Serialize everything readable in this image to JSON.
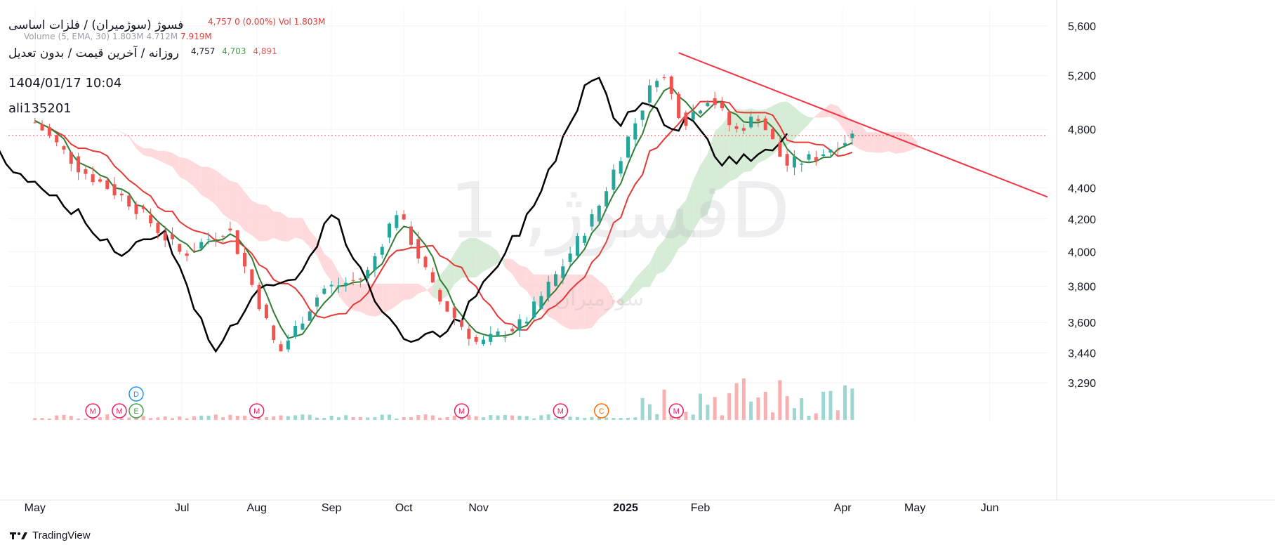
{
  "header": {
    "symbol_title": "فسوژ (سوژمیران) / فلزات اساسی",
    "ohlc_text": "4,757  0 (0.00%)  Vol 1.803M",
    "volume_label": "Volume (5, EMA, 30)",
    "volume_values": "1.803M  4.712M",
    "volume_ema": "7.919M",
    "subtitle": "روزانه / آخرین قیمت / بدون تعدیل",
    "indicator_values": [
      "4,757",
      "4,703",
      "4,891"
    ],
    "datetime": "1404/01/17 10:04",
    "username": "ali135201"
  },
  "watermark": {
    "main": "فسوژ, 1D",
    "sub": "سوژمیران"
  },
  "branding": {
    "label": "TradingView"
  },
  "colors": {
    "up": "#26a69a",
    "down": "#ef5350",
    "tenkan": "#2e7d32",
    "kijun": "#e53935",
    "chikou": "#000000",
    "cloud_bull": "#c8e6c9",
    "cloud_bear": "#ffcdd2",
    "trendline": "#f23645",
    "price_line": "#ef5350"
  },
  "chart_data": {
    "type": "candlestick",
    "title": "فسوژ (سوژمیران) / فلزات اساسی",
    "y_axis": {
      "scale": "log",
      "ticks": [
        5600,
        5200,
        4800,
        4400,
        4200,
        4000,
        3800,
        3600,
        3440,
        3290
      ],
      "tick_labels": [
        "5,600",
        "5,200",
        "4,800",
        "4,400",
        "4,200",
        "4,000",
        "3,800",
        "3,600",
        "3,440",
        "3,290"
      ],
      "range": [
        3100,
        5700
      ]
    },
    "x_axis": {
      "tick_labels": [
        "May",
        "Jul",
        "Aug",
        "Sep",
        "Oct",
        "Nov",
        "2025",
        "Feb",
        "Apr",
        "May",
        "Jun"
      ],
      "range": [
        "2024-04-20",
        "2025-06-25"
      ]
    },
    "last_price": 4757,
    "price_series_approx": [
      {
        "date": "2024-05-01",
        "close": 4850
      },
      {
        "date": "2024-05-20",
        "close": 4520
      },
      {
        "date": "2024-06-10",
        "close": 4300
      },
      {
        "date": "2024-07-01",
        "close": 3980
      },
      {
        "date": "2024-07-20",
        "close": 4150
      },
      {
        "date": "2024-08-10",
        "close": 3430
      },
      {
        "date": "2024-08-28",
        "close": 3780
      },
      {
        "date": "2024-09-15",
        "close": 3850
      },
      {
        "date": "2024-09-28",
        "close": 4250
      },
      {
        "date": "2024-10-15",
        "close": 3730
      },
      {
        "date": "2024-11-01",
        "close": 3480
      },
      {
        "date": "2024-11-20",
        "close": 3600
      },
      {
        "date": "2024-12-05",
        "close": 3900
      },
      {
        "date": "2024-12-20",
        "close": 4250
      },
      {
        "date": "2025-01-05",
        "close": 4850
      },
      {
        "date": "2025-01-15",
        "close": 5250
      },
      {
        "date": "2025-01-25",
        "close": 4850
      },
      {
        "date": "2025-02-05",
        "close": 5050
      },
      {
        "date": "2025-02-15",
        "close": 4780
      },
      {
        "date": "2025-02-25",
        "close": 4900
      },
      {
        "date": "2025-03-08",
        "close": 4550
      },
      {
        "date": "2025-03-20",
        "close": 4600
      },
      {
        "date": "2025-04-05",
        "close": 4757
      }
    ],
    "event_markers": [
      {
        "date": "2024-05-25",
        "label": "M"
      },
      {
        "date": "2024-06-05",
        "label": "M"
      },
      {
        "date": "2024-06-12",
        "label": "E"
      },
      {
        "date": "2024-06-12",
        "label": "D"
      },
      {
        "date": "2024-08-01",
        "label": "M"
      },
      {
        "date": "2024-10-25",
        "label": "M"
      },
      {
        "date": "2024-12-05",
        "label": "M"
      },
      {
        "date": "2024-12-22",
        "label": "C"
      },
      {
        "date": "2025-01-22",
        "label": "M"
      }
    ],
    "grid": true,
    "legend": "top-left"
  }
}
